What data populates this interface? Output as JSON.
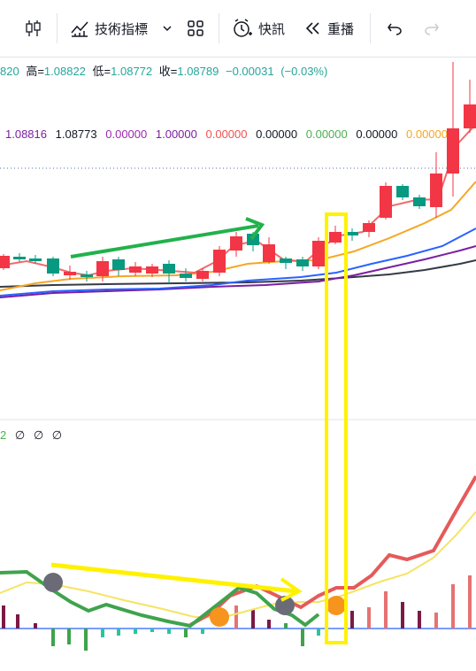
{
  "toolbar": {
    "indicators_label": "技術指標",
    "alerts_label": "快訊",
    "replay_label": "重播"
  },
  "ohlc": {
    "open_partial": "820",
    "high_label": "高=",
    "high": "1.08822",
    "low_label": "低=",
    "low": "1.08772",
    "close_label": "收=",
    "close": "1.08789",
    "change": "−0.00031",
    "change_pct": "(−0.03%)"
  },
  "indicator_values": [
    {
      "text": "1.08816",
      "color": "#7b1fa2"
    },
    {
      "text": "1.08773",
      "color": "#131722"
    },
    {
      "text": "0.00000",
      "color": "#9c27b0"
    },
    {
      "text": "1.00000",
      "color": "#7b1fa2"
    },
    {
      "text": "0.00000",
      "color": "#ef5350"
    },
    {
      "text": "0.00000",
      "color": "#131722"
    },
    {
      "text": "0.00000",
      "color": "#4caf50"
    },
    {
      "text": "0.00000",
      "color": "#131722"
    },
    {
      "text": "0.00000",
      "color": "#f5a623"
    }
  ],
  "sub_legend": {
    "partial": "2",
    "v1": "∅",
    "v2": "∅",
    "v3": "∅"
  },
  "colors": {
    "bull": "#f23645",
    "bear": "#089981",
    "highlight": "#ffeb3b",
    "annotation_green": "#22b14c",
    "annotation_yellow": "#fff200"
  },
  "icons": [
    "candle-type-icon",
    "indicators-icon",
    "chevron-down-icon",
    "layout-icon",
    "alert-clock-icon",
    "replay-icon",
    "undo-icon",
    "redo-icon"
  ]
}
